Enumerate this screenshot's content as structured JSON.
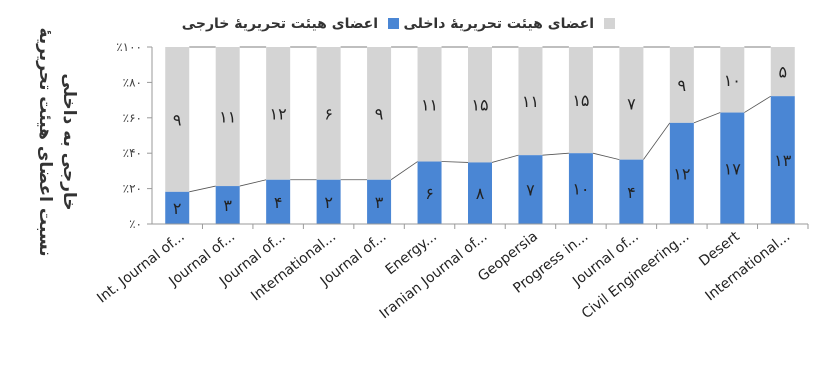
{
  "chart_data": {
    "type": "bar",
    "stacked": true,
    "percent_stacked": true,
    "ylabel_line1": "نسبت اعضای هیئت تحریریهٔ",
    "ylabel_line2": "خارجی به داخلی",
    "ylim": [
      0,
      100
    ],
    "y_ticks": [
      0,
      20,
      40,
      60,
      80,
      100
    ],
    "y_tick_labels": [
      "٪۰",
      "٪۲۰",
      "٪۴۰",
      "٪۶۰",
      "٪۸۰",
      "٪۱۰۰"
    ],
    "legend_position": "top",
    "categories": [
      "Int. Journal of...",
      "Journal of...",
      "Journal of...",
      "International...",
      "Journal of...",
      "Energy...",
      "Iranian Journal of...",
      "Geopersia",
      "Progress in...",
      "Journal of...",
      "Civil Engineering...",
      "Desert",
      "International..."
    ],
    "series": [
      {
        "name": "اعضای هیئت تحریریهٔ خارجی",
        "color": "#4a86d4",
        "values": [
          2,
          3,
          4,
          2,
          3,
          6,
          8,
          7,
          10,
          4,
          12,
          17,
          13
        ],
        "labels": [
          "۲",
          "۳",
          "۴",
          "۲",
          "۳",
          "۶",
          "۸",
          "۷",
          "۱۰",
          "۴",
          "۱۲",
          "۱۷",
          "۱۳"
        ]
      },
      {
        "name": "اعضای هیئت تحریریهٔ داخلی",
        "color": "#d4d4d4",
        "values": [
          9,
          11,
          12,
          6,
          9,
          11,
          15,
          11,
          15,
          7,
          9,
          10,
          5
        ],
        "labels": [
          "۹",
          "۱۱",
          "۱۲",
          "۶",
          "۹",
          "۱۱",
          "۱۵",
          "۱۱",
          "۱۵",
          "۷",
          "۹",
          "۱۰",
          "۵"
        ]
      }
    ]
  }
}
